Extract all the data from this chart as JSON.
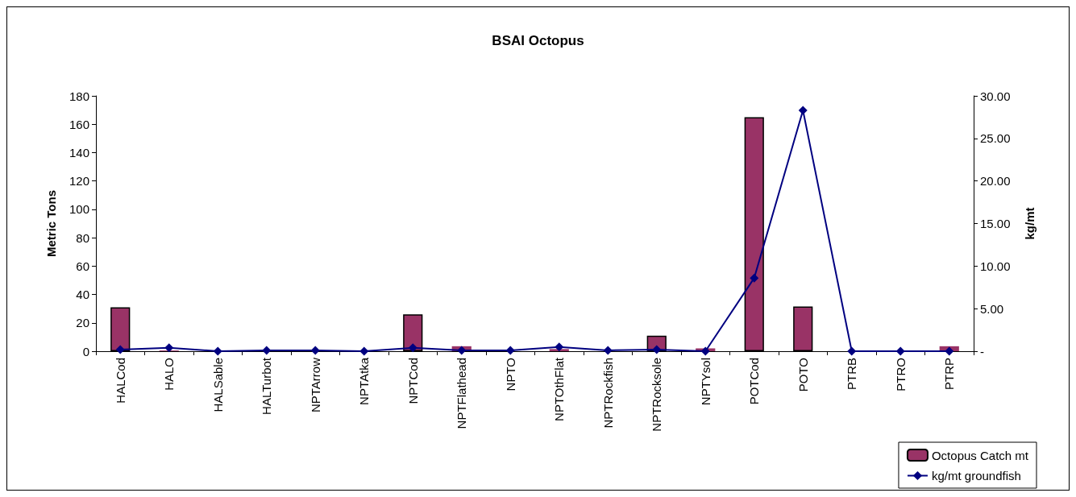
{
  "chart_data": {
    "type": "bar",
    "title": "BSAI Octopus",
    "ylabel": "Metric Tons",
    "y2label": "kg/mt",
    "categories": [
      "HALCod",
      "HALO",
      "HALSable",
      "HALTurbot",
      "NPTArrow",
      "NPTAtka",
      "NPTCod",
      "NPTFlathead",
      "NPTO",
      "NPTOthFlat",
      "NPTRockfish",
      "NPTRocksole",
      "NPTYsol",
      "POTCod",
      "POTO",
      "PTRB",
      "PTRO",
      "PTRP"
    ],
    "series": [
      {
        "name": "Octopus Catch mt",
        "color": "#993366",
        "values": [
          31,
          0.5,
          0,
          0,
          0.3,
          null,
          26,
          3.5,
          null,
          1.5,
          null,
          11,
          2,
          165,
          31.5,
          null,
          0,
          3.5
        ]
      },
      {
        "name": "kg/mt groundfish",
        "type": "line",
        "axis": "y2",
        "color": "#000080",
        "values": [
          0.2,
          0.4,
          0,
          0.1,
          0.1,
          0,
          0.4,
          0.1,
          0.1,
          0.5,
          0.1,
          0.2,
          0,
          8.6,
          28.3,
          0,
          0,
          0
        ]
      }
    ],
    "ylim": [
      0,
      180
    ],
    "yticks": [
      0,
      20,
      40,
      60,
      80,
      100,
      120,
      140,
      160,
      180
    ],
    "y2lim": [
      0,
      30
    ],
    "y2ticks": [
      {
        "value": 0,
        "label": "-"
      },
      {
        "value": 5,
        "label": "5.00"
      },
      {
        "value": 10,
        "label": "10.00"
      },
      {
        "value": 15,
        "label": "15.00"
      },
      {
        "value": 20,
        "label": "20.00"
      },
      {
        "value": 25,
        "label": "25.00"
      },
      {
        "value": 30,
        "label": "30.00"
      }
    ],
    "grid": false,
    "legend": "bottom right",
    "marker": "diamond",
    "line_style": "solid"
  }
}
